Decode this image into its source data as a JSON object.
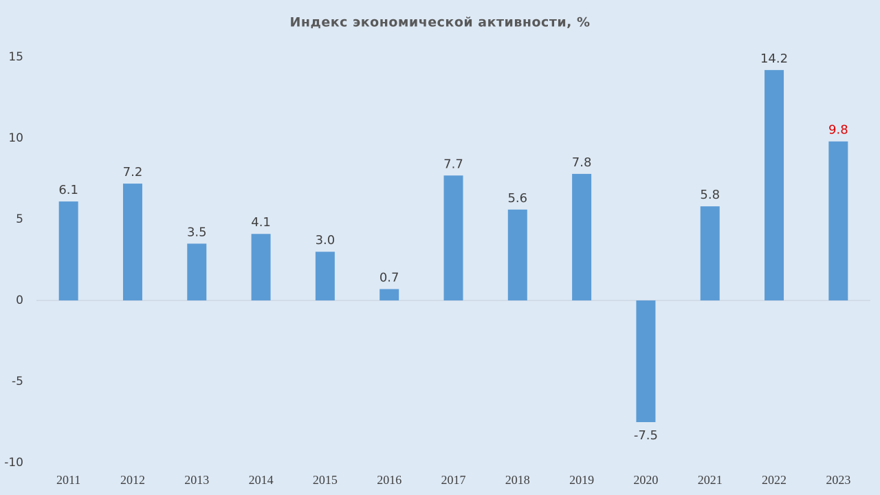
{
  "chart_data": {
    "type": "bar",
    "title": "Индекс экономической активности, %",
    "categories": [
      "2011",
      "2012",
      "2013",
      "2014",
      "2015",
      "2016",
      "2017",
      "2018",
      "2019",
      "2020",
      "2021",
      "2022",
      "2023"
    ],
    "values": [
      6.1,
      7.2,
      3.5,
      4.1,
      3.0,
      0.7,
      7.7,
      5.6,
      7.8,
      -7.5,
      5.8,
      14.2,
      9.8
    ],
    "value_labels": [
      "6.1",
      "7.2",
      "3.5",
      "4.1",
      "3.0",
      "0.7",
      "7.7",
      "5.6",
      "7.8",
      "-7.5",
      "5.8",
      "14.2",
      "9.8"
    ],
    "value_label_colors": [
      "#404040",
      "#404040",
      "#404040",
      "#404040",
      "#404040",
      "#404040",
      "#404040",
      "#404040",
      "#404040",
      "#404040",
      "#404040",
      "#404040",
      "#e00000"
    ],
    "color": "#5b9bd5",
    "ylim": [
      -10,
      15
    ],
    "yticks": [
      -10,
      -5,
      0,
      5,
      10,
      15
    ],
    "grid": false
  }
}
